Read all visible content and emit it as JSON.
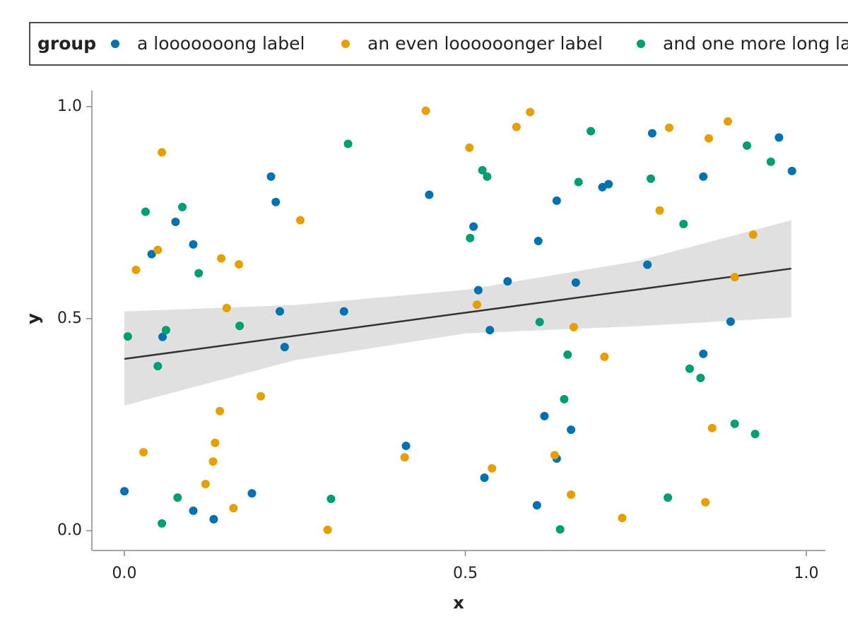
{
  "chart_data": {
    "type": "scatter",
    "x_label": "x",
    "y_label": "y",
    "legend_title": "group",
    "legend_position": "top",
    "xlim": [
      -0.0477,
      1.028
    ],
    "ylim": [
      -0.0467,
      1.038
    ],
    "xticks": [
      {
        "value": 0,
        "label": "0.0"
      },
      {
        "value": 0.5,
        "label": "0.5"
      },
      {
        "value": 1,
        "label": "1.0"
      }
    ],
    "yticks": [
      {
        "value": 0,
        "label": "0.0"
      },
      {
        "value": 0.5,
        "label": "0.5"
      },
      {
        "value": 1,
        "label": "1.0"
      }
    ],
    "series": [
      {
        "name": "a looooooong label",
        "color": "#0072b2",
        "x": [
          0.0,
          0.04,
          0.056,
          0.075,
          0.101,
          0.101,
          0.131,
          0.187,
          0.215,
          0.222,
          0.228,
          0.235,
          0.322,
          0.413,
          0.447,
          0.512,
          0.519,
          0.528,
          0.536,
          0.562,
          0.605,
          0.607,
          0.616,
          0.634,
          0.634,
          0.655,
          0.662,
          0.701,
          0.71,
          0.767,
          0.774,
          0.849,
          0.849,
          0.889,
          0.96,
          0.979
        ],
        "y": [
          0.093,
          0.652,
          0.457,
          0.728,
          0.675,
          0.047,
          0.027,
          0.088,
          0.835,
          0.775,
          0.517,
          0.433,
          0.517,
          0.2,
          0.792,
          0.717,
          0.567,
          0.125,
          0.473,
          0.588,
          0.06,
          0.683,
          0.27,
          0.778,
          0.17,
          0.238,
          0.585,
          0.81,
          0.817,
          0.627,
          0.937,
          0.835,
          0.417,
          0.493,
          0.927,
          0.848
        ]
      },
      {
        "name": "an even loooooonger label",
        "color": "#e69f00",
        "x": [
          0.017,
          0.028,
          0.049,
          0.055,
          0.119,
          0.13,
          0.133,
          0.14,
          0.142,
          0.15,
          0.16,
          0.168,
          0.2,
          0.258,
          0.298,
          0.411,
          0.442,
          0.506,
          0.517,
          0.539,
          0.575,
          0.595,
          0.631,
          0.655,
          0.659,
          0.704,
          0.73,
          0.785,
          0.799,
          0.852,
          0.857,
          0.862,
          0.885,
          0.895,
          0.922
        ],
        "y": [
          0.615,
          0.185,
          0.662,
          0.892,
          0.11,
          0.163,
          0.207,
          0.282,
          0.642,
          0.525,
          0.053,
          0.628,
          0.317,
          0.732,
          0.002,
          0.173,
          0.99,
          0.903,
          0.533,
          0.147,
          0.952,
          0.987,
          0.178,
          0.085,
          0.48,
          0.41,
          0.03,
          0.755,
          0.95,
          0.067,
          0.925,
          0.242,
          0.965,
          0.598,
          0.698
        ]
      },
      {
        "name": "and one more long label",
        "color": "#009e73",
        "x": [
          0.005,
          0.031,
          0.049,
          0.055,
          0.061,
          0.078,
          0.085,
          0.109,
          0.169,
          0.303,
          0.328,
          0.507,
          0.525,
          0.532,
          0.609,
          0.639,
          0.645,
          0.65,
          0.666,
          0.684,
          0.772,
          0.797,
          0.82,
          0.829,
          0.845,
          0.895,
          0.913,
          0.925,
          0.948
        ],
        "y": [
          0.458,
          0.752,
          0.388,
          0.017,
          0.473,
          0.078,
          0.763,
          0.607,
          0.483,
          0.075,
          0.912,
          0.69,
          0.85,
          0.835,
          0.492,
          0.003,
          0.31,
          0.415,
          0.822,
          0.942,
          0.83,
          0.078,
          0.723,
          0.382,
          0.36,
          0.252,
          0.908,
          0.228,
          0.87
        ]
      }
    ],
    "fit": {
      "color": "#333333",
      "band_color": "#e0e0e0",
      "x": [
        0,
        0.25,
        0.5,
        0.75,
        0.978
      ],
      "y": [
        0.405,
        0.4595,
        0.514,
        0.568,
        0.618
      ],
      "lower": [
        0.295,
        0.402,
        0.465,
        0.482,
        0.503
      ],
      "upper": [
        0.517,
        0.532,
        0.568,
        0.635,
        0.732
      ]
    }
  }
}
